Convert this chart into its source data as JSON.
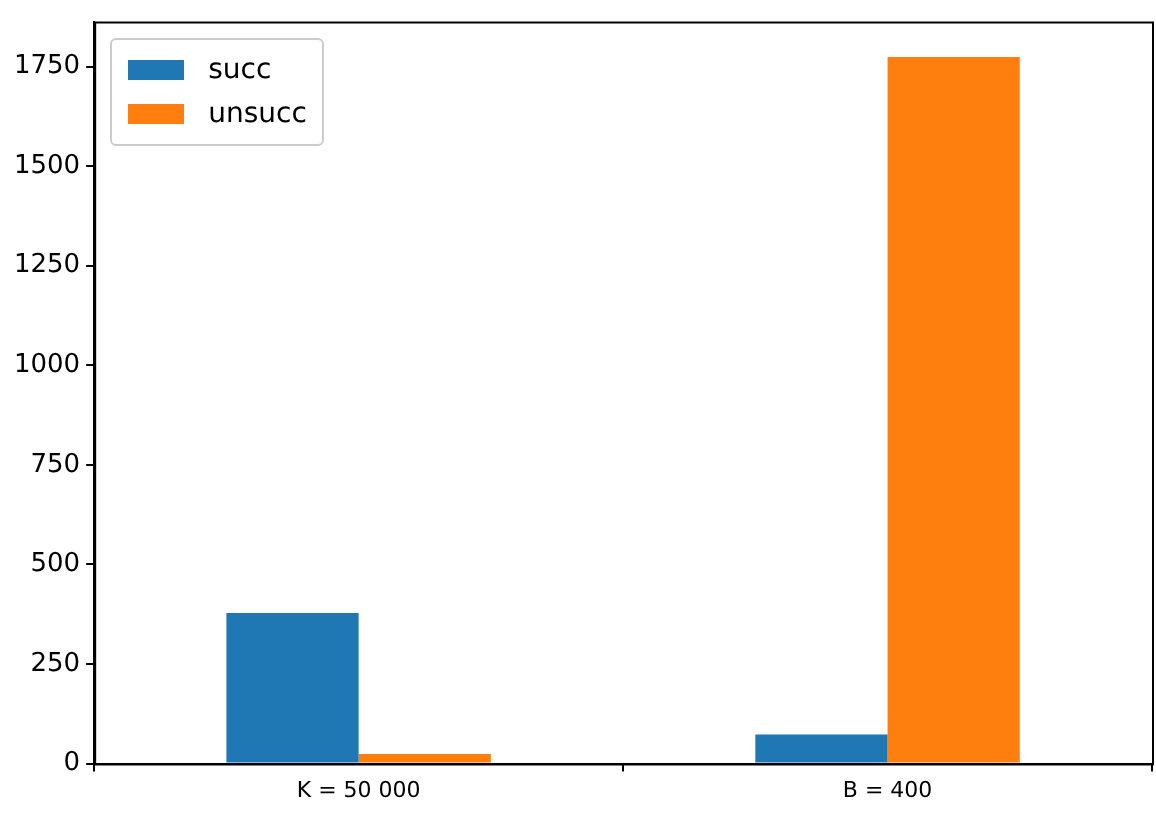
{
  "chart_data": {
    "type": "bar",
    "categories": [
      "K = 50 000",
      "B = 400"
    ],
    "series": [
      {
        "name": "succ",
        "color": "#1f77b4",
        "values": [
          378,
          73
        ]
      },
      {
        "name": "unsucc",
        "color": "#ff7f0e",
        "values": [
          24,
          1774
        ]
      }
    ],
    "ylim": [
      0,
      1863
    ],
    "yticks": [
      0,
      250,
      500,
      750,
      1000,
      1250,
      1500,
      1750
    ],
    "grid": false,
    "legend": "top left"
  }
}
